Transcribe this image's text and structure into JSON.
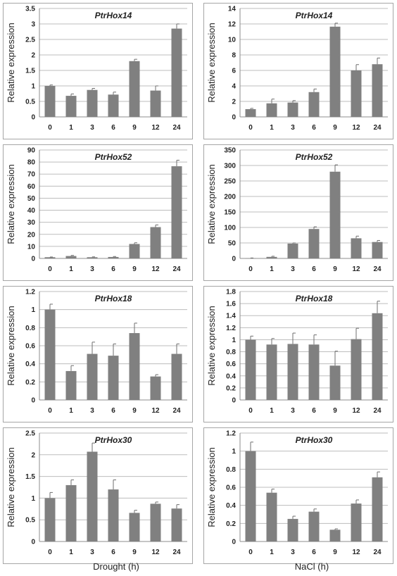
{
  "column_labels": {
    "left": "Drought (h)",
    "right": "NaCl (h)"
  },
  "chart_data": [
    {
      "type": "bar",
      "title": "PtrHox14",
      "ylabel": "Relative expression",
      "xlabel": "",
      "categories": [
        "0",
        "1",
        "3",
        "6",
        "9",
        "12",
        "24"
      ],
      "values": [
        1.0,
        0.68,
        0.87,
        0.72,
        1.8,
        0.85,
        2.85
      ],
      "errors": [
        0.03,
        0.06,
        0.05,
        0.08,
        0.06,
        0.15,
        0.15
      ],
      "ylim": [
        0,
        3.5
      ],
      "yticks": [
        "0",
        "0.5",
        "1",
        "1.5",
        "2",
        "2.5",
        "3",
        "3.5"
      ],
      "ystep": 0.5,
      "grid": true
    },
    {
      "type": "bar",
      "title": "PtrHox14",
      "ylabel": "Relative expression",
      "xlabel": "",
      "categories": [
        "0",
        "1",
        "3",
        "6",
        "9",
        "12",
        "24"
      ],
      "values": [
        1.0,
        1.75,
        1.85,
        3.2,
        11.65,
        6.0,
        6.8
      ],
      "errors": [
        0.1,
        0.55,
        0.25,
        0.4,
        0.45,
        0.75,
        0.8
      ],
      "ylim": [
        0,
        14
      ],
      "yticks": [
        "0",
        "2",
        "4",
        "6",
        "8",
        "10",
        "12",
        "14"
      ],
      "ystep": 2,
      "grid": true
    },
    {
      "type": "bar",
      "title": "PtrHox52",
      "ylabel": "Relative expression",
      "xlabel": "",
      "categories": [
        "0",
        "1",
        "3",
        "6",
        "9",
        "12",
        "24"
      ],
      "values": [
        1.0,
        2.0,
        1.0,
        1.2,
        12.0,
        26.0,
        76.5
      ],
      "errors": [
        0.2,
        0.5,
        0.3,
        0.4,
        1.0,
        1.8,
        5.0
      ],
      "ylim": [
        0,
        90
      ],
      "yticks": [
        "0",
        "10",
        "20",
        "30",
        "40",
        "50",
        "60",
        "70",
        "80",
        "90"
      ],
      "ystep": 10,
      "grid": true
    },
    {
      "type": "bar",
      "title": "PtrHox52",
      "ylabel": "Relative expression",
      "xlabel": "",
      "categories": [
        "0",
        "1",
        "3",
        "6",
        "9",
        "12",
        "24"
      ],
      "values": [
        1.0,
        5.0,
        48.0,
        95.0,
        280.0,
        65.0,
        53.0
      ],
      "errors": [
        0.5,
        2.0,
        2.0,
        7.0,
        22.0,
        7.0,
        5.0
      ],
      "ylim": [
        0,
        350
      ],
      "yticks": [
        "0",
        "50",
        "100",
        "150",
        "200",
        "250",
        "300",
        "350"
      ],
      "ystep": 50,
      "grid": true
    },
    {
      "type": "bar",
      "title": "PtrHox18",
      "ylabel": "Relative expression",
      "xlabel": "",
      "categories": [
        "0",
        "1",
        "3",
        "6",
        "9",
        "12",
        "24"
      ],
      "values": [
        1.0,
        0.32,
        0.51,
        0.49,
        0.74,
        0.26,
        0.51
      ],
      "errors": [
        0.06,
        0.06,
        0.13,
        0.13,
        0.11,
        0.02,
        0.11
      ],
      "ylim": [
        0,
        1.2
      ],
      "yticks": [
        "0",
        "0.2",
        "0.4",
        "0.6",
        "0.8",
        "1",
        "1.2"
      ],
      "ystep": 0.2,
      "grid": true
    },
    {
      "type": "bar",
      "title": "PtrHox18",
      "ylabel": "Relative expression",
      "xlabel": "",
      "categories": [
        "0",
        "1",
        "3",
        "6",
        "9",
        "12",
        "24"
      ],
      "values": [
        1.0,
        0.92,
        0.93,
        0.92,
        0.57,
        1.01,
        1.44
      ],
      "errors": [
        0.06,
        0.1,
        0.18,
        0.16,
        0.24,
        0.18,
        0.2
      ],
      "ylim": [
        0,
        1.8
      ],
      "yticks": [
        "0",
        "0.2",
        "0.4",
        "0.6",
        "0.8",
        "1",
        "1.2",
        "1.4",
        "1.6",
        "1.8"
      ],
      "ystep": 0.2,
      "grid": true
    },
    {
      "type": "bar",
      "title": "PtrHox30",
      "ylabel": "Relative expression",
      "xlabel": "",
      "categories": [
        "0",
        "1",
        "3",
        "6",
        "9",
        "12",
        "24"
      ],
      "values": [
        1.0,
        1.3,
        2.07,
        1.2,
        0.66,
        0.87,
        0.76
      ],
      "errors": [
        0.13,
        0.12,
        0.2,
        0.22,
        0.06,
        0.04,
        0.09
      ],
      "ylim": [
        0,
        2.5
      ],
      "yticks": [
        "0",
        "0.5",
        "1",
        "1.5",
        "2",
        "2.5"
      ],
      "ystep": 0.5,
      "grid": true
    },
    {
      "type": "bar",
      "title": "PtrHox30",
      "ylabel": "Relative expression",
      "xlabel": "",
      "categories": [
        "0",
        "1",
        "3",
        "6",
        "9",
        "12",
        "24"
      ],
      "values": [
        1.0,
        0.54,
        0.25,
        0.33,
        0.13,
        0.42,
        0.71
      ],
      "errors": [
        0.1,
        0.04,
        0.03,
        0.03,
        0.01,
        0.04,
        0.06
      ],
      "ylim": [
        0,
        1.2
      ],
      "yticks": [
        "0",
        "0.2",
        "0.4",
        "0.6",
        "0.8",
        "1",
        "1.2"
      ],
      "ystep": 0.2,
      "grid": true
    }
  ],
  "colors": {
    "bar": "#808080",
    "grid": "#bdbdbd",
    "border": "#a6a6a6"
  }
}
